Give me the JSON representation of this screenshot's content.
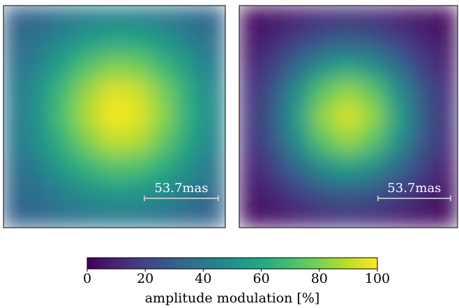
{
  "chart_data": {
    "type": "heatmap",
    "colormap": "viridis",
    "panels": [
      {
        "annotation": "53.7mas",
        "values": [
          [
            31,
            34,
            39,
            43,
            45,
            44,
            41,
            36,
            32
          ],
          [
            34,
            40,
            48,
            56,
            61,
            60,
            53,
            44,
            37
          ],
          [
            37,
            46,
            60,
            73,
            81,
            78,
            67,
            54,
            42
          ],
          [
            40,
            52,
            69,
            86,
            96,
            92,
            79,
            61,
            46
          ],
          [
            40,
            53,
            72,
            89,
            100,
            96,
            82,
            63,
            47
          ],
          [
            39,
            50,
            66,
            81,
            91,
            88,
            75,
            59,
            44
          ],
          [
            36,
            44,
            56,
            67,
            73,
            71,
            62,
            50,
            40
          ],
          [
            33,
            38,
            45,
            51,
            55,
            54,
            49,
            41,
            35
          ],
          [
            30,
            33,
            36,
            39,
            41,
            40,
            38,
            34,
            31
          ]
        ]
      },
      {
        "annotation": "53.7mas",
        "values": [
          [
            4,
            6,
            9,
            13,
            14,
            13,
            9,
            6,
            4
          ],
          [
            6,
            12,
            20,
            28,
            32,
            28,
            20,
            12,
            6
          ],
          [
            9,
            20,
            36,
            51,
            58,
            51,
            36,
            20,
            9
          ],
          [
            13,
            28,
            51,
            74,
            84,
            74,
            51,
            28,
            13
          ],
          [
            14,
            32,
            58,
            84,
            95,
            84,
            58,
            32,
            14
          ],
          [
            13,
            28,
            51,
            74,
            84,
            74,
            51,
            28,
            13
          ],
          [
            9,
            20,
            36,
            51,
            58,
            51,
            36,
            20,
            9
          ],
          [
            6,
            12,
            20,
            28,
            32,
            28,
            20,
            12,
            6
          ],
          [
            4,
            6,
            9,
            13,
            14,
            13,
            9,
            6,
            4
          ]
        ]
      }
    ],
    "colorbar": {
      "label": "amplitude modulation [%]",
      "clim": [
        0,
        100
      ],
      "ticks": [
        0,
        20,
        40,
        60,
        80,
        100
      ]
    }
  }
}
